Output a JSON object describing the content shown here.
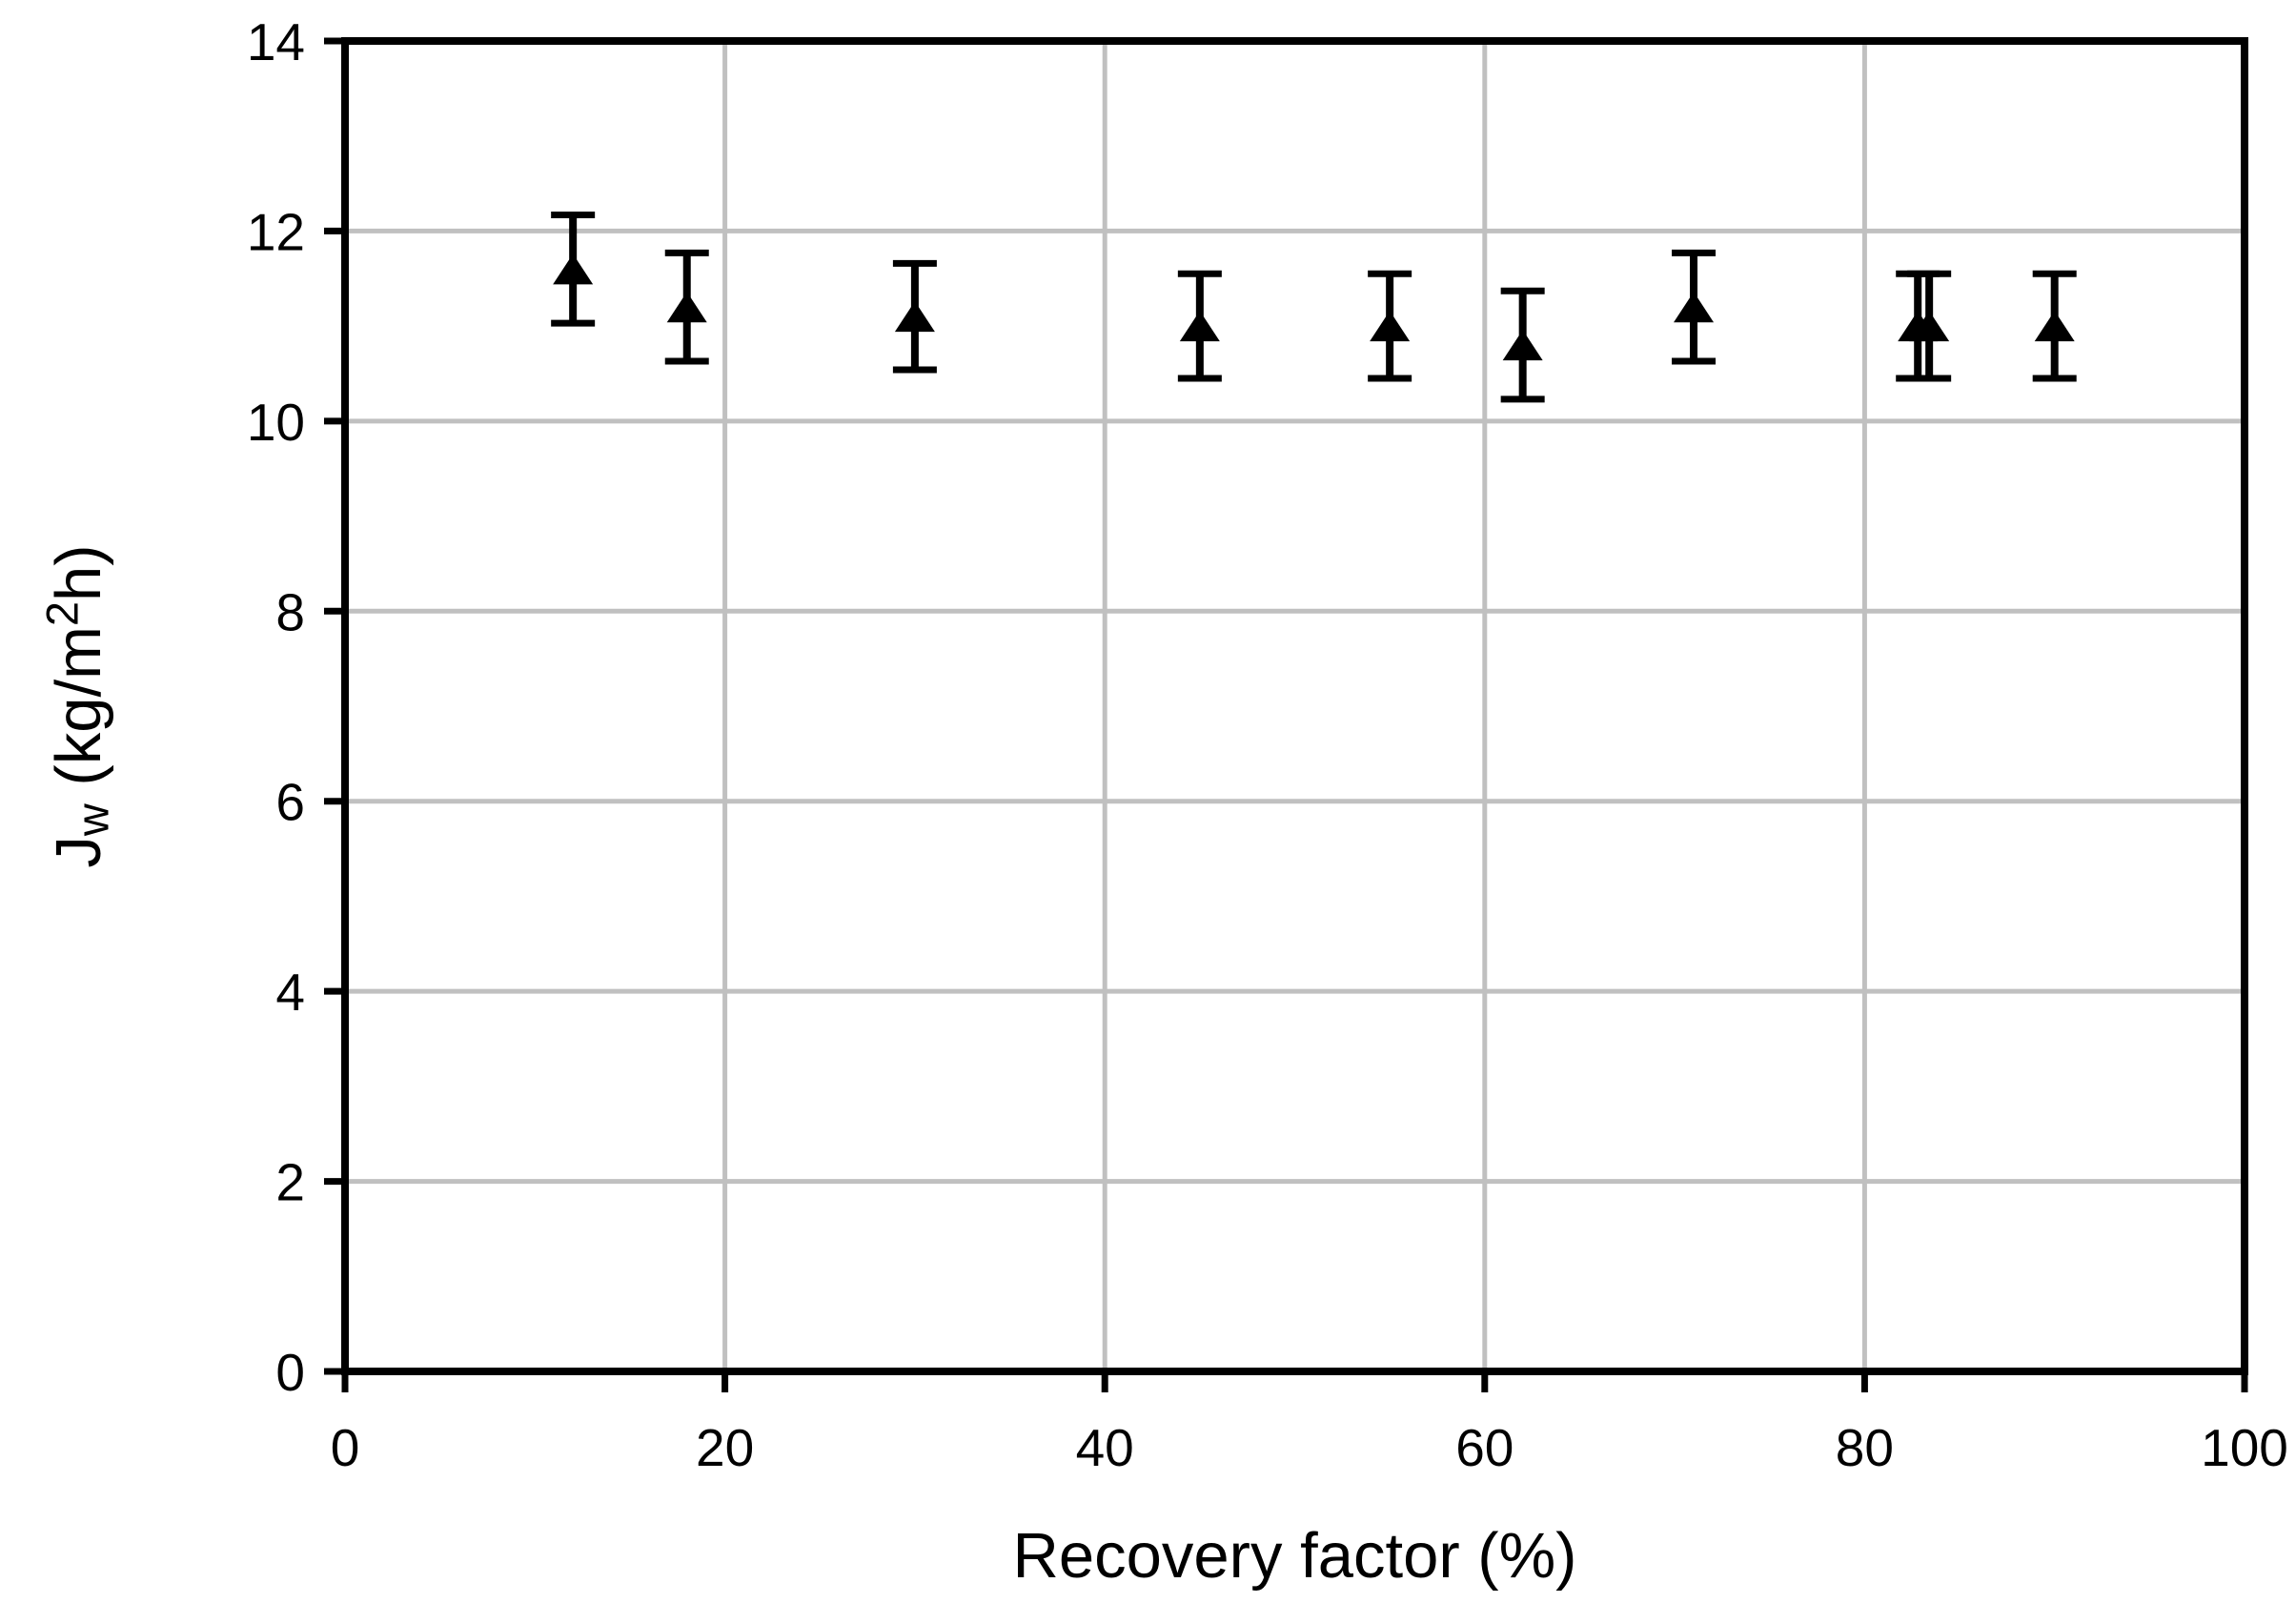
{
  "chart_data": {
    "type": "scatter",
    "title": "",
    "xlabel": "Recovery factor (%)",
    "ylabel": "Jw (kg/m²h)",
    "ylabel_parts": {
      "symbol": "J",
      "symbol_sub": "w",
      "unit_pre": " (kg/m",
      "unit_sup": "2",
      "unit_post": "h)"
    },
    "xlim": [
      0,
      100
    ],
    "ylim": [
      0,
      14
    ],
    "x_ticks": [
      0,
      20,
      40,
      60,
      80,
      100
    ],
    "y_ticks": [
      0,
      2,
      4,
      6,
      8,
      10,
      12,
      14
    ],
    "x_gridlines": [
      20,
      40,
      60,
      80
    ],
    "y_gridlines": [
      2,
      4,
      6,
      8,
      10,
      12
    ],
    "grid": true,
    "legend": "none",
    "grid_color": "#c0c0c0",
    "axis_color": "#000000",
    "background_color": "#ffffff",
    "series": [
      {
        "marker": "triangle-up-filled",
        "color": "#000000",
        "error_bars": true,
        "points": [
          {
            "x": 12,
            "y": 11.6,
            "err_up": 0.57,
            "err_down": 0.57
          },
          {
            "x": 18,
            "y": 11.2,
            "err_up": 0.57,
            "err_down": 0.57
          },
          {
            "x": 30,
            "y": 11.1,
            "err_up": 0.56,
            "err_down": 0.56
          },
          {
            "x": 45,
            "y": 11.0,
            "err_up": 0.55,
            "err_down": 0.55
          },
          {
            "x": 55,
            "y": 11.0,
            "err_up": 0.55,
            "err_down": 0.55
          },
          {
            "x": 62,
            "y": 10.8,
            "err_up": 0.57,
            "err_down": 0.57
          },
          {
            "x": 71,
            "y": 11.2,
            "err_up": 0.57,
            "err_down": 0.57
          },
          {
            "x": 82.8,
            "y": 11.0,
            "err_up": 0.55,
            "err_down": 0.55
          },
          {
            "x": 83.4,
            "y": 11.0,
            "err_up": 0.55,
            "err_down": 0.55
          },
          {
            "x": 90,
            "y": 11.0,
            "err_up": 0.55,
            "err_down": 0.55
          }
        ]
      }
    ]
  }
}
